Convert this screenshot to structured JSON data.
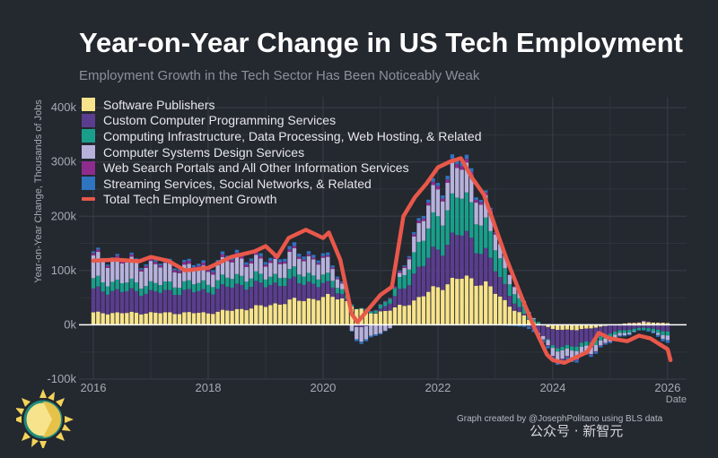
{
  "title": "Year-on-Year Change in US Tech Employment",
  "subtitle": "Employment Growth in the Tech Sector Has Been Noticeably Weak",
  "credit": "Graph created by @JosephPolitano using BLS data",
  "watermark": "公众号 · 新智元",
  "chart_data": {
    "type": "bar",
    "stacked": true,
    "title": "Year-on-Year Change in US Tech Employment",
    "subtitle": "Employment Growth in the Tech Sector Has Been Noticeably Weak",
    "xlabel": "Date",
    "ylabel": "Year-on-Year Change, Thousands of Jobs",
    "xlim": [
      "2015-09",
      "2026-04"
    ],
    "ylim": [
      -100,
      420
    ],
    "x_ticks": [
      "2016",
      "2018",
      "2020",
      "2022",
      "2024",
      "2026"
    ],
    "y_ticks": [
      "-100k",
      "0k",
      "100k",
      "200k",
      "300k",
      "400k"
    ],
    "grid": true,
    "legend_position": "top-left",
    "start_month": "2016-01",
    "series": [
      {
        "name": "Software Publishers",
        "color": "#f7e38c",
        "anchors": [
          [
            2016.0,
            22
          ],
          [
            2017.0,
            22
          ],
          [
            2018.0,
            22
          ],
          [
            2018.5,
            28
          ],
          [
            2019.0,
            35
          ],
          [
            2019.5,
            45
          ],
          [
            2020.0,
            50
          ],
          [
            2020.3,
            52
          ],
          [
            2020.6,
            28
          ],
          [
            2020.9,
            22
          ],
          [
            2021.2,
            28
          ],
          [
            2021.6,
            45
          ],
          [
            2022.0,
            70
          ],
          [
            2022.4,
            87
          ],
          [
            2022.8,
            78
          ],
          [
            2023.2,
            40
          ],
          [
            2023.6,
            8
          ],
          [
            2024.0,
            -8
          ],
          [
            2024.4,
            -10
          ],
          [
            2024.8,
            -4
          ],
          [
            2025.2,
            2
          ],
          [
            2025.6,
            5
          ],
          [
            2026.0,
            3
          ]
        ]
      },
      {
        "name": "Custom Computer Programming Services",
        "color": "#5b3d8f",
        "anchors": [
          [
            2016.0,
            42
          ],
          [
            2017.0,
            38
          ],
          [
            2018.0,
            40
          ],
          [
            2018.5,
            45
          ],
          [
            2019.0,
            38
          ],
          [
            2019.5,
            35
          ],
          [
            2020.0,
            25
          ],
          [
            2020.3,
            10
          ],
          [
            2020.6,
            -5
          ],
          [
            2020.9,
            0
          ],
          [
            2021.2,
            15
          ],
          [
            2021.6,
            50
          ],
          [
            2022.0,
            70
          ],
          [
            2022.4,
            82
          ],
          [
            2022.8,
            60
          ],
          [
            2023.2,
            25
          ],
          [
            2023.6,
            -5
          ],
          [
            2024.0,
            -30
          ],
          [
            2024.4,
            -30
          ],
          [
            2024.8,
            -20
          ],
          [
            2025.2,
            -10
          ],
          [
            2025.6,
            -5
          ],
          [
            2026.0,
            -12
          ]
        ]
      },
      {
        "name": "Computing Infrastructure, Data Processing, Web Hosting, & Related",
        "color": "#1a9e8c",
        "anchors": [
          [
            2016.0,
            18
          ],
          [
            2017.0,
            15
          ],
          [
            2018.0,
            15
          ],
          [
            2018.5,
            17
          ],
          [
            2019.0,
            15
          ],
          [
            2019.5,
            17
          ],
          [
            2020.0,
            15
          ],
          [
            2020.3,
            10
          ],
          [
            2020.6,
            0
          ],
          [
            2020.9,
            5
          ],
          [
            2021.2,
            10
          ],
          [
            2021.6,
            40
          ],
          [
            2022.0,
            62
          ],
          [
            2022.4,
            70
          ],
          [
            2022.8,
            55
          ],
          [
            2023.2,
            25
          ],
          [
            2023.6,
            8
          ],
          [
            2024.0,
            -5
          ],
          [
            2024.4,
            -8
          ],
          [
            2024.8,
            -8
          ],
          [
            2025.2,
            -5
          ],
          [
            2025.6,
            -4
          ],
          [
            2026.0,
            -7
          ]
        ]
      },
      {
        "name": "Computer Systems Design Services",
        "color": "#b6b2dc",
        "anchors": [
          [
            2016.0,
            40
          ],
          [
            2017.0,
            35
          ],
          [
            2018.0,
            25
          ],
          [
            2018.5,
            33
          ],
          [
            2019.0,
            25
          ],
          [
            2019.5,
            30
          ],
          [
            2020.0,
            30
          ],
          [
            2020.3,
            15
          ],
          [
            2020.6,
            -25
          ],
          [
            2020.9,
            -20
          ],
          [
            2021.2,
            -5
          ],
          [
            2021.6,
            30
          ],
          [
            2022.0,
            50
          ],
          [
            2022.4,
            55
          ],
          [
            2022.8,
            40
          ],
          [
            2023.2,
            20
          ],
          [
            2023.6,
            5
          ],
          [
            2024.0,
            -15
          ],
          [
            2024.4,
            -15
          ],
          [
            2024.8,
            -10
          ],
          [
            2025.2,
            -5
          ],
          [
            2025.6,
            2
          ],
          [
            2026.0,
            -8
          ]
        ]
      },
      {
        "name": "Web Search Portals and All Other Information Services",
        "color": "#8e2c8e",
        "anchors": [
          [
            2016.0,
            4
          ],
          [
            2017.0,
            4
          ],
          [
            2018.0,
            5
          ],
          [
            2018.5,
            5
          ],
          [
            2019.0,
            4
          ],
          [
            2019.5,
            4
          ],
          [
            2020.0,
            3
          ],
          [
            2020.3,
            2
          ],
          [
            2020.6,
            0
          ],
          [
            2020.9,
            1
          ],
          [
            2021.2,
            2
          ],
          [
            2021.6,
            4
          ],
          [
            2022.0,
            6
          ],
          [
            2022.4,
            7
          ],
          [
            2022.8,
            5
          ],
          [
            2023.2,
            2
          ],
          [
            2023.6,
            0
          ],
          [
            2024.0,
            -2
          ],
          [
            2024.4,
            -2
          ],
          [
            2024.8,
            -1
          ],
          [
            2025.2,
            0
          ],
          [
            2025.6,
            1
          ],
          [
            2026.0,
            0
          ]
        ]
      },
      {
        "name": "Streaming Services, Social Networks, & Related",
        "color": "#2f74c0",
        "anchors": [
          [
            2016.0,
            3
          ],
          [
            2017.0,
            3
          ],
          [
            2018.0,
            4
          ],
          [
            2018.5,
            5
          ],
          [
            2019.0,
            5
          ],
          [
            2019.5,
            6
          ],
          [
            2020.0,
            5
          ],
          [
            2020.3,
            3
          ],
          [
            2020.6,
            -4
          ],
          [
            2020.9,
            -3
          ],
          [
            2021.2,
            0
          ],
          [
            2021.6,
            4
          ],
          [
            2022.0,
            6
          ],
          [
            2022.4,
            8
          ],
          [
            2022.8,
            4
          ],
          [
            2023.2,
            -2
          ],
          [
            2023.6,
            -4
          ],
          [
            2024.0,
            -5
          ],
          [
            2024.4,
            -4
          ],
          [
            2024.8,
            -3
          ],
          [
            2025.2,
            -2
          ],
          [
            2025.6,
            -1
          ],
          [
            2026.0,
            -5
          ]
        ]
      }
    ],
    "total": {
      "name": "Total Tech Employment Growth",
      "color": "#e8584a",
      "points": [
        [
          2016.0,
          118
        ],
        [
          2016.4,
          120
        ],
        [
          2016.8,
          117
        ],
        [
          2017.0,
          125
        ],
        [
          2017.3,
          118
        ],
        [
          2017.6,
          100
        ],
        [
          2018.0,
          105
        ],
        [
          2018.4,
          125
        ],
        [
          2018.8,
          135
        ],
        [
          2019.0,
          145
        ],
        [
          2019.2,
          125
        ],
        [
          2019.4,
          160
        ],
        [
          2019.7,
          175
        ],
        [
          2020.0,
          160
        ],
        [
          2020.1,
          170
        ],
        [
          2020.3,
          120
        ],
        [
          2020.5,
          20
        ],
        [
          2020.6,
          5
        ],
        [
          2020.8,
          30
        ],
        [
          2021.0,
          55
        ],
        [
          2021.2,
          70
        ],
        [
          2021.4,
          200
        ],
        [
          2021.6,
          235
        ],
        [
          2021.8,
          260
        ],
        [
          2022.0,
          290
        ],
        [
          2022.2,
          300
        ],
        [
          2022.4,
          307
        ],
        [
          2022.6,
          270
        ],
        [
          2022.8,
          240
        ],
        [
          2023.0,
          180
        ],
        [
          2023.2,
          120
        ],
        [
          2023.5,
          40
        ],
        [
          2023.7,
          -10
        ],
        [
          2023.9,
          -55
        ],
        [
          2024.0,
          -65
        ],
        [
          2024.2,
          -70
        ],
        [
          2024.4,
          -60
        ],
        [
          2024.6,
          -50
        ],
        [
          2024.8,
          -15
        ],
        [
          2025.0,
          -25
        ],
        [
          2025.3,
          -30
        ],
        [
          2025.5,
          -20
        ],
        [
          2025.7,
          -25
        ],
        [
          2026.0,
          -45
        ],
        [
          2026.05,
          -65
        ]
      ]
    }
  }
}
